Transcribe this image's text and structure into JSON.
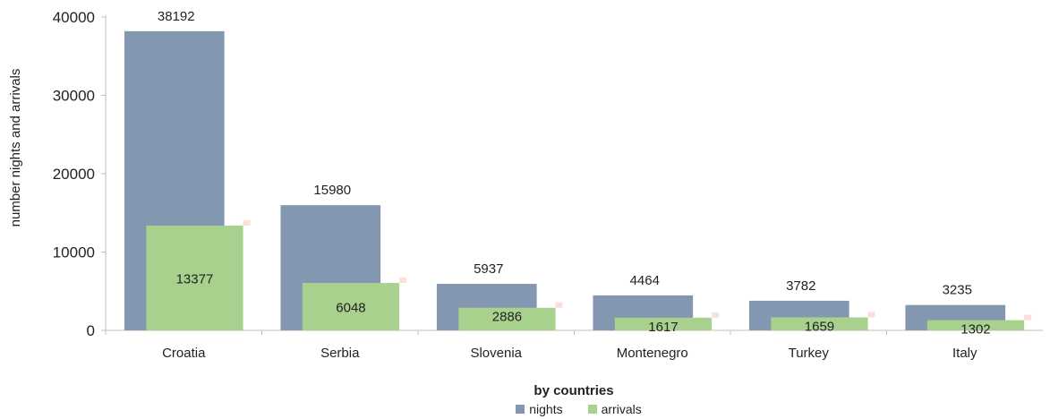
{
  "chart_data": {
    "type": "bar",
    "title": "",
    "xlabel": "by countries",
    "ylabel": "number nights and arrivals",
    "categories": [
      "Croatia",
      "Serbia",
      "Slovenia",
      "Montenegro",
      "Turkey",
      "Italy"
    ],
    "series": [
      {
        "name": "nights",
        "values": [
          38192,
          15980,
          5937,
          4464,
          3782,
          3235
        ],
        "color": "#8497b0"
      },
      {
        "name": "arrivals",
        "values": [
          13377,
          6048,
          2886,
          1617,
          1659,
          1302
        ],
        "color": "#a9d18e"
      }
    ],
    "ylim": [
      0,
      40000
    ],
    "yticks": [
      0,
      10000,
      20000,
      30000,
      40000
    ],
    "grid": false,
    "legend_position": "bottom"
  }
}
